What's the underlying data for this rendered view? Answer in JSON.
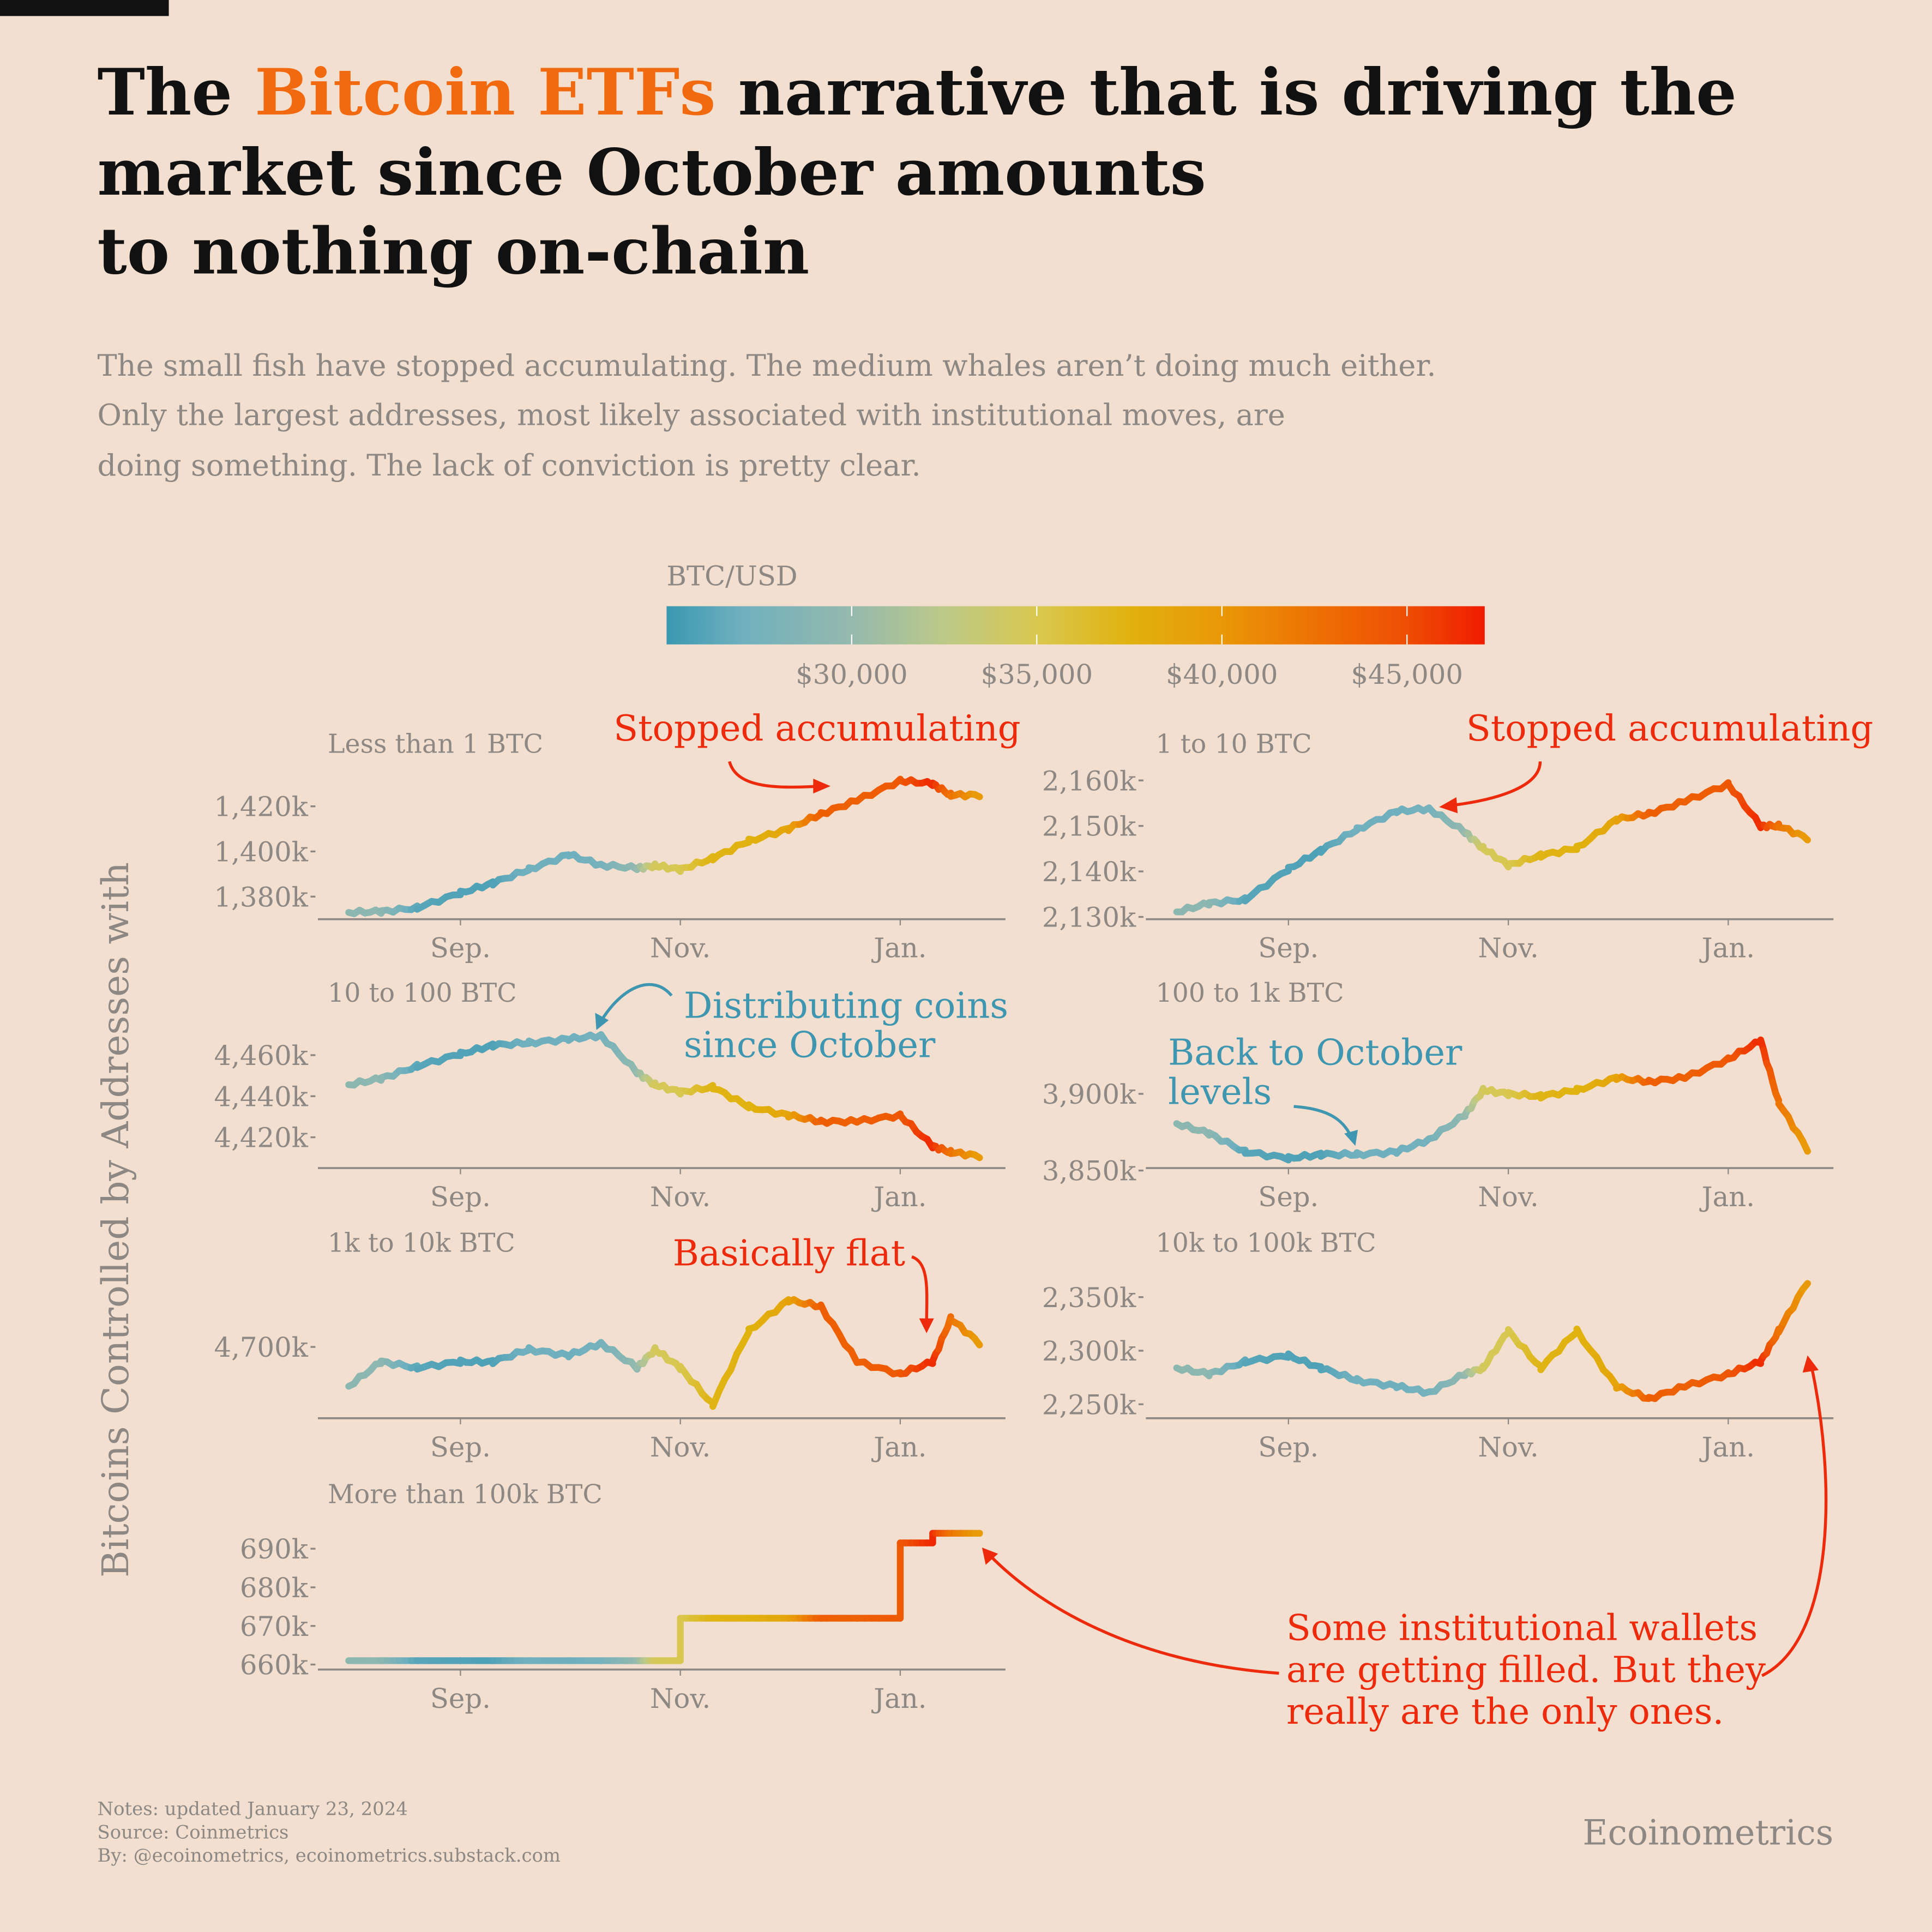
{
  "title": {
    "part1": "The ",
    "highlight": "Bitcoin ETFs",
    "part2": " narrative that is driving the",
    "line2": "market since October amounts",
    "line3": "to nothing on-chain",
    "highlight_color": "#f26a10"
  },
  "subtitle": [
    "The small fish have stopped accumulating. The medium whales aren’t doing much either.",
    "Only the largest addresses, most likely associated with institutional moves, are",
    "doing something. The lack of conviction is pretty clear."
  ],
  "colorbar": {
    "label": "BTC/USD",
    "range": [
      25000,
      47100
    ],
    "ticks": [
      30000,
      35000,
      40000,
      45000
    ],
    "tick_labels": [
      "$30,000",
      "$35,000",
      "$40,000",
      "$45,000"
    ],
    "colorscale": [
      [
        25000,
        "#3a98b1"
      ],
      [
        27000,
        "#6fb0be"
      ],
      [
        30000,
        "#95b9ad"
      ],
      [
        32500,
        "#bcc988"
      ],
      [
        35000,
        "#d9c850"
      ],
      [
        37500,
        "#e0b20e"
      ],
      [
        40000,
        "#e99707"
      ],
      [
        43000,
        "#ee6a03"
      ],
      [
        45000,
        "#ee4e05"
      ],
      [
        47100,
        "#f01c00"
      ]
    ]
  },
  "y_axis_label": "Bitcoins Controlled by Addresses with",
  "chart_data": {
    "type": "line",
    "x_tick_labels": [
      "Sep.",
      "Nov.",
      "Jan."
    ],
    "x_ticks": [
      "2023-09-01",
      "2023-11-01",
      "2024-01-01"
    ],
    "xlim": [
      "2023-08-01",
      "2024-01-23"
    ],
    "dates": [
      "2023-08-01",
      "2023-08-10",
      "2023-08-20",
      "2023-09-01",
      "2023-09-10",
      "2023-09-20",
      "2023-10-01",
      "2023-10-10",
      "2023-10-20",
      "2023-10-25",
      "2023-11-01",
      "2023-11-10",
      "2023-11-20",
      "2023-12-01",
      "2023-12-10",
      "2023-12-20",
      "2024-01-01",
      "2024-01-10",
      "2024-01-15",
      "2024-01-23"
    ],
    "btc_usd": [
      29200,
      29400,
      26100,
      25900,
      25800,
      27200,
      27000,
      27400,
      29700,
      34500,
      34900,
      37300,
      37400,
      38700,
      43800,
      43700,
      44200,
      46600,
      42500,
      39500
    ],
    "panels": [
      {
        "title": "Less than 1 BTC",
        "ylim": [
          1370,
          1435.5
        ],
        "ticks": [
          1380,
          1400,
          1420
        ],
        "tick_labels": [
          "1,380k",
          "1,400k",
          "1,420k"
        ],
        "values": [
          1373,
          1373.4,
          1375,
          1381.6,
          1386,
          1392,
          1398.6,
          1394,
          1392.6,
          1393.7,
          1392,
          1397,
          1404.6,
          1410,
          1416.6,
          1422.6,
          1431.4,
          1430,
          1425,
          1425
        ]
      },
      {
        "title": "1 to 10 BTC",
        "ylim": [
          2129.5,
          2162
        ],
        "ticks": [
          2130,
          2140,
          2150,
          2160
        ],
        "tick_labels": [
          "2,130k",
          "2,140k",
          "2,150k",
          "2,160k"
        ],
        "values": [
          2131.1,
          2133,
          2133.8,
          2140.5,
          2144.6,
          2149.2,
          2153.2,
          2153.8,
          2148.6,
          2145.1,
          2141.4,
          2143.5,
          2145.1,
          2151.4,
          2152.7,
          2155.4,
          2159.2,
          2150,
          2150,
          2147.3
        ]
      },
      {
        "title": "10 to 100 BTC",
        "ylim": [
          4405,
          4477
        ],
        "ticks": [
          4420,
          4440,
          4460
        ],
        "tick_labels": [
          "4,420k",
          "4,440k",
          "4,460k"
        ],
        "values": [
          4445.6,
          4448.6,
          4454.6,
          4460.6,
          4464.8,
          4466,
          4467.8,
          4469.6,
          4451.6,
          4445.6,
          4442,
          4444.4,
          4434.9,
          4430.7,
          4427.7,
          4427.7,
          4430.7,
          4415.7,
          4412.7,
          4410.9
        ]
      },
      {
        "title": "100 to 1k BTC",
        "ylim": [
          3851.6,
          3948
        ],
        "ticks": [
          3850,
          3900
        ],
        "tick_labels": [
          "3,850k",
          "3,900k"
        ],
        "values": [
          3880.6,
          3874.2,
          3862.1,
          3858,
          3860.5,
          3860.5,
          3862.1,
          3870.2,
          3886.3,
          3902.4,
          3900,
          3898.4,
          3902.4,
          3910.5,
          3908,
          3910.5,
          3922.6,
          3934.7,
          3894.4,
          3863.7
        ]
      },
      {
        "title": "1k to 10k BTC",
        "ylim": [
          4660,
          4743
        ],
        "ticks": [
          4700
        ],
        "tick_labels": [
          "4,700k"
        ],
        "values": [
          4677.9,
          4691.7,
          4688.3,
          4691.7,
          4691.7,
          4698.6,
          4695.2,
          4702.1,
          4688.3,
          4698.6,
          4688.3,
          4667.6,
          4709,
          4726.2,
          4722.8,
          4691.7,
          4684.8,
          4691.7,
          4715.9,
          4702.1
        ]
      },
      {
        "title": "10k to 100k BTC",
        "ylim": [
          2237,
          2375
        ],
        "ticks": [
          2250,
          2300,
          2350
        ],
        "tick_labels": [
          "2,250k",
          "2,300k",
          "2,350k"
        ],
        "values": [
          2283.9,
          2278.2,
          2289.7,
          2295.4,
          2283.9,
          2272.4,
          2266.7,
          2260.9,
          2278.2,
          2283.9,
          2318.4,
          2283.9,
          2318.4,
          2266.7,
          2255.2,
          2266.7,
          2278.2,
          2289.7,
          2318.4,
          2364.4
        ]
      },
      {
        "title": "More than 100k BTC",
        "ylim": [
          658.7,
          697
        ],
        "ticks": [
          660,
          670,
          680,
          690
        ],
        "tick_labels": [
          "660k",
          "670k",
          "680k",
          "690k"
        ],
        "interpolation": "step-after",
        "values": [
          661,
          661,
          661,
          661,
          661,
          661,
          661,
          661,
          661,
          661,
          672,
          672,
          672,
          672,
          672,
          672,
          691.5,
          694,
          694,
          694
        ]
      }
    ]
  },
  "annotations": {
    "p1": "Stopped accumulating",
    "p2": "Stopped accumulating",
    "p3": [
      "Distributing coins",
      "since October"
    ],
    "p4": [
      "Back to October",
      "levels"
    ],
    "p5": "Basically flat",
    "p7": [
      "Some institutional wallets",
      "are getting filled. But they",
      "really are the only ones."
    ]
  },
  "footer": {
    "notes": "Notes: updated January 23, 2024",
    "source": "Source: Coinmetrics",
    "by": "By: @ecoinometrics, ecoinometrics.substack.com",
    "brand": "Ecoinometrics"
  }
}
